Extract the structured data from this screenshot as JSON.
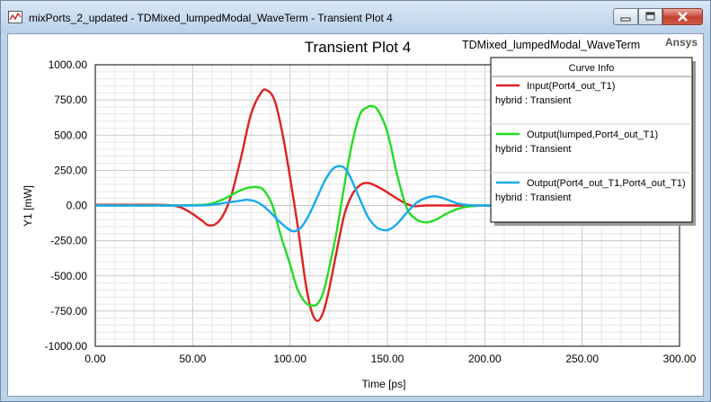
{
  "window": {
    "title": "mixPorts_2_updated - TDMixed_lumpedModal_WaveTerm - Transient Plot 4",
    "minimize_icon": "minimize-icon",
    "maximize_icon": "maximize-icon",
    "close_icon": "close-icon"
  },
  "plot": {
    "title": "Transient Plot 4",
    "design_name": "TDMixed_lumpedModal_WaveTerm",
    "brand": "Ansys"
  },
  "legend": {
    "header": "Curve Info",
    "entries": [
      {
        "name": "Input(Port4_out_T1)",
        "sub": "hybrid : Transient",
        "color": "#dd2222"
      },
      {
        "name": "Output(lumped,Port4_out_T1)",
        "sub": "hybrid : Transient",
        "color": "#22dd22"
      },
      {
        "name": "Output(Port4_out_T1,Port4_out_T1)",
        "sub": "hybrid : Transient",
        "color": "#18aaee"
      }
    ]
  },
  "chart_data": {
    "type": "line",
    "xlabel": "Time [ps]",
    "ylabel": "Y1 [mW]",
    "xlim": [
      0,
      300
    ],
    "ylim": [
      -1000,
      1000
    ],
    "xticks": [
      "0.00",
      "50.00",
      "100.00",
      "150.00",
      "200.00",
      "250.00",
      "300.00"
    ],
    "yticks": [
      "1000.00",
      "750.00",
      "500.00",
      "250.00",
      "0.00",
      "-250.00",
      "-500.00",
      "-750.00",
      "-1000.00"
    ],
    "grid": true,
    "series": [
      {
        "name": "Input(Port4_out_T1)",
        "color": "#dd2222",
        "x": [
          0,
          30,
          40,
          45,
          50,
          55,
          58,
          62,
          66,
          70,
          75,
          80,
          85,
          88,
          92,
          96,
          100,
          104,
          108,
          111,
          114,
          117,
          120,
          124,
          128,
          132,
          136,
          140,
          144,
          148,
          152,
          156,
          160,
          164,
          170,
          180,
          200,
          210
        ],
        "y": [
          5,
          5,
          0,
          -20,
          -60,
          -110,
          -140,
          -130,
          -60,
          80,
          350,
          650,
          800,
          820,
          750,
          520,
          200,
          -150,
          -550,
          -750,
          -820,
          -760,
          -600,
          -320,
          -60,
          80,
          145,
          160,
          140,
          110,
          75,
          40,
          10,
          -5,
          0,
          0,
          0,
          0
        ]
      },
      {
        "name": "Output(lumped,Port4_out_T1)",
        "color": "#22dd22",
        "x": [
          0,
          40,
          55,
          60,
          65,
          70,
          75,
          80,
          85,
          88,
          91,
          95,
          100,
          104,
          108,
          111,
          114,
          117,
          120,
          124,
          128,
          132,
          136,
          140,
          142,
          145,
          150,
          155,
          160,
          165,
          170,
          175,
          180,
          185,
          190,
          195,
          200,
          210
        ],
        "y": [
          0,
          0,
          5,
          15,
          40,
          75,
          110,
          130,
          125,
          80,
          0,
          -200,
          -420,
          -600,
          -690,
          -710,
          -700,
          -620,
          -450,
          -180,
          150,
          450,
          650,
          700,
          705,
          680,
          520,
          220,
          -20,
          -100,
          -120,
          -100,
          -60,
          -30,
          -10,
          -3,
          0,
          0
        ]
      },
      {
        "name": "Output(Port4_out_T1,Port4_out_T1)",
        "color": "#18aaee",
        "x": [
          0,
          50,
          60,
          65,
          70,
          75,
          78,
          82,
          86,
          90,
          95,
          100,
          103,
          106,
          110,
          114,
          118,
          122,
          126,
          129,
          132,
          136,
          140,
          144,
          148,
          151,
          155,
          160,
          165,
          170,
          174,
          178,
          182,
          186,
          190,
          195,
          200,
          210
        ],
        "y": [
          0,
          0,
          5,
          15,
          25,
          35,
          40,
          30,
          0,
          -50,
          -120,
          -175,
          -180,
          -150,
          -60,
          60,
          180,
          260,
          280,
          250,
          170,
          40,
          -80,
          -150,
          -175,
          -170,
          -130,
          -50,
          20,
          55,
          65,
          55,
          35,
          15,
          5,
          0,
          0,
          0
        ]
      }
    ]
  }
}
